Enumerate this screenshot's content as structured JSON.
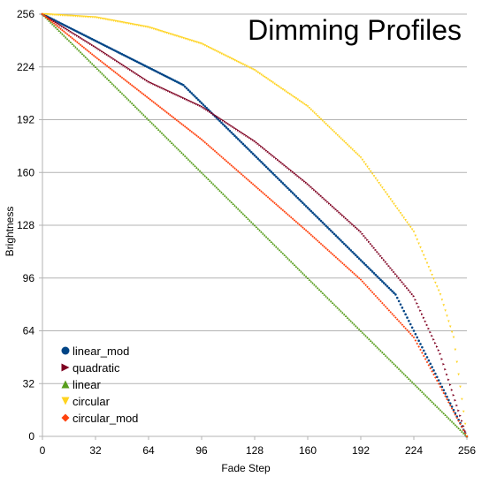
{
  "chart_data": {
    "type": "scatter",
    "title": "Dimming Profiles",
    "xlabel": "Fade Step",
    "ylabel": "Brightness",
    "xlim": [
      0,
      256
    ],
    "ylim": [
      0,
      256
    ],
    "xticks": [
      0,
      32,
      64,
      96,
      128,
      160,
      192,
      224,
      256
    ],
    "yticks": [
      0,
      32,
      64,
      96,
      128,
      160,
      192,
      224,
      256
    ],
    "grid": "horizontal",
    "legend_position": "bottom-left",
    "series": [
      {
        "name": "linear_mod",
        "marker": "circle",
        "color": "#004586",
        "points": [
          [
            0,
            256
          ],
          [
            85,
            213
          ],
          [
            213,
            86
          ],
          [
            256,
            0
          ]
        ]
      },
      {
        "name": "quadratic",
        "marker": "triangle-right",
        "color": "#7e0021",
        "points": [
          [
            0,
            256
          ],
          [
            32,
            236
          ],
          [
            64,
            215
          ],
          [
            96,
            200
          ],
          [
            128,
            179
          ],
          [
            160,
            153
          ],
          [
            192,
            124
          ],
          [
            224,
            85
          ],
          [
            240,
            50
          ],
          [
            256,
            0
          ]
        ]
      },
      {
        "name": "linear",
        "marker": "triangle-up",
        "color": "#579d1c",
        "points": [
          [
            0,
            256
          ],
          [
            256,
            0
          ]
        ]
      },
      {
        "name": "circular",
        "marker": "triangle-down",
        "color": "#ffd320",
        "points": [
          [
            0,
            256
          ],
          [
            32,
            254
          ],
          [
            64,
            248
          ],
          [
            96,
            238
          ],
          [
            128,
            222
          ],
          [
            160,
            200
          ],
          [
            192,
            169
          ],
          [
            224,
            124
          ],
          [
            240,
            86
          ],
          [
            248,
            60
          ],
          [
            256,
            0
          ]
        ]
      },
      {
        "name": "circular_mod",
        "marker": "diamond",
        "color": "#ff420e",
        "points": [
          [
            0,
            256
          ],
          [
            32,
            230
          ],
          [
            64,
            205
          ],
          [
            96,
            180
          ],
          [
            128,
            152
          ],
          [
            160,
            124
          ],
          [
            192,
            95
          ],
          [
            224,
            60
          ],
          [
            256,
            0
          ]
        ]
      }
    ]
  }
}
